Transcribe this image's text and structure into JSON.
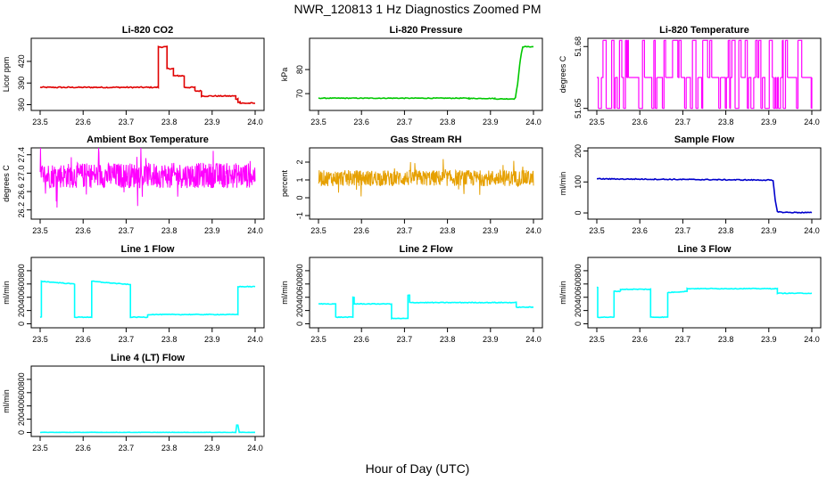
{
  "page": {
    "title": "NWR_120813  1 Hz Diagnostics Zoomed PM",
    "xlabel": "Hour of Day (UTC)"
  },
  "colors": {
    "red": "#e00000",
    "green": "#00c800",
    "magenta": "#ff00ff",
    "orange": "#e6a000",
    "blue": "#0000cc",
    "cyan": "#00ffff"
  },
  "chart_data": [
    {
      "type": "line",
      "title": "Li-820 CO2",
      "ylabel": "Licor ppm",
      "xlim": [
        23.5,
        24.0
      ],
      "ylim": [
        352,
        452
      ],
      "xticks": [
        "23.5",
        "23.6",
        "23.7",
        "23.8",
        "23.9",
        "24.0"
      ],
      "yticks": [
        {
          "v": 360,
          "label": "360"
        },
        {
          "v": 390,
          "label": "390"
        },
        {
          "v": 420,
          "label": "420"
        }
      ],
      "color": "red",
      "noise": 0.8,
      "series": [
        {
          "x": [
            23.5,
            23.775,
            23.775,
            23.795,
            23.795,
            23.81,
            23.81,
            23.82,
            23.82,
            23.835,
            23.835,
            23.86,
            23.86,
            23.875,
            23.875,
            23.955,
            23.955,
            23.96,
            23.96,
            23.965,
            23.965,
            24.0
          ],
          "y": [
            384,
            384,
            440,
            440,
            410,
            410,
            400,
            400,
            400,
            400,
            384,
            384,
            379,
            379,
            372,
            372,
            368,
            368,
            364,
            364,
            362,
            362
          ]
        }
      ]
    },
    {
      "type": "line",
      "title": "Li-820 Pressure",
      "ylabel": "kPa",
      "xlim": [
        23.5,
        24.0
      ],
      "ylim": [
        63,
        93
      ],
      "xticks": [
        "23.5",
        "23.6",
        "23.7",
        "23.8",
        "23.9",
        "24.0"
      ],
      "yticks": [
        {
          "v": 70,
          "label": "70"
        },
        {
          "v": 80,
          "label": "80"
        }
      ],
      "color": "green",
      "noise": 0.15,
      "series": [
        {
          "x": [
            23.5,
            23.85,
            23.85,
            23.91,
            23.91,
            23.955,
            23.958,
            23.963,
            23.968,
            23.972,
            23.975,
            24.0
          ],
          "y": [
            68.1,
            68.1,
            68.0,
            68.0,
            67.8,
            67.8,
            68.5,
            74,
            82,
            87,
            89.5,
            89.5
          ]
        }
      ]
    },
    {
      "type": "line",
      "title": "Li-820 Temperature",
      "ylabel": "degrees C",
      "xlim": [
        23.5,
        24.0
      ],
      "ylim": [
        51.649,
        51.684
      ],
      "xticks": [
        "23.5",
        "23.6",
        "23.7",
        "23.8",
        "23.9",
        "24.0"
      ],
      "yticks": [
        {
          "v": 51.65,
          "label": "51.65"
        },
        {
          "v": 51.68,
          "label": "51.68"
        }
      ],
      "color": "magenta",
      "mode": "flicker",
      "levels": [
        51.65,
        51.665,
        51.683
      ]
    },
    {
      "type": "line",
      "title": "Ambient Box Temperature",
      "ylabel": "degrees C",
      "xlim": [
        23.5,
        24.0
      ],
      "ylim": [
        26.0,
        27.55
      ],
      "xticks": [
        "23.5",
        "23.6",
        "23.7",
        "23.8",
        "23.9",
        "24.0"
      ],
      "yticks": [
        {
          "v": 26.2,
          "label": "26.2"
        },
        {
          "v": 26.6,
          "label": "26.6"
        },
        {
          "v": 27.0,
          "label": "27.0"
        },
        {
          "v": 27.4,
          "label": "27.4"
        }
      ],
      "color": "magenta",
      "mode": "noisy",
      "mean": 26.95,
      "spread": 0.55
    },
    {
      "type": "line",
      "title": "Gas Stream RH",
      "ylabel": "percent",
      "xlim": [
        23.5,
        24.0
      ],
      "ylim": [
        -1.2,
        2.8
      ],
      "xticks": [
        "23.5",
        "23.6",
        "23.7",
        "23.8",
        "23.9",
        "24.0"
      ],
      "yticks": [
        {
          "v": -1,
          "label": "-1"
        },
        {
          "v": 0,
          "label": "0"
        },
        {
          "v": 1,
          "label": "1"
        },
        {
          "v": 2,
          "label": "2"
        }
      ],
      "color": "orange",
      "mode": "noisy",
      "mean": 1.1,
      "spread": 0.9
    },
    {
      "type": "line",
      "title": "Sample Flow",
      "ylabel": "ml/min",
      "xlim": [
        23.5,
        24.0
      ],
      "ylim": [
        -20,
        210
      ],
      "xticks": [
        "23.5",
        "23.6",
        "23.7",
        "23.8",
        "23.9",
        "24.0"
      ],
      "yticks": [
        {
          "v": 0,
          "label": "0"
        },
        {
          "v": 100,
          "label": "100"
        },
        {
          "v": 200,
          "label": "200"
        }
      ],
      "color": "blue",
      "noise": 1.5,
      "series": [
        {
          "x": [
            23.5,
            23.9,
            23.91,
            23.915,
            23.92,
            23.93,
            24.0
          ],
          "y": [
            110,
            106,
            104,
            40,
            5,
            2,
            1
          ]
        }
      ]
    },
    {
      "type": "line",
      "title": "Line 1 Flow",
      "ylabel": "ml/min",
      "xlim": [
        23.5,
        24.0
      ],
      "ylim": [
        -60,
        1000
      ],
      "xticks": [
        "23.5",
        "23.6",
        "23.7",
        "23.8",
        "23.9",
        "24.0"
      ],
      "yticks": [
        {
          "v": 0,
          "label": "0"
        },
        {
          "v": 200,
          "label": "200"
        },
        {
          "v": 400,
          "label": "400"
        },
        {
          "v": 600,
          "label": "600"
        },
        {
          "v": 800,
          "label": "800"
        }
      ],
      "color": "cyan",
      "noise": 5,
      "series": [
        {
          "x": [
            23.5,
            23.503,
            23.503,
            23.58,
            23.58,
            23.62,
            23.62,
            23.71,
            23.71,
            23.75,
            23.75,
            23.96,
            23.96,
            24.0
          ],
          "y": [
            100,
            100,
            640,
            600,
            100,
            100,
            640,
            590,
            100,
            100,
            140,
            140,
            560,
            560
          ]
        }
      ]
    },
    {
      "type": "line",
      "title": "Line 2 Flow",
      "ylabel": "ml/min",
      "xlim": [
        23.5,
        24.0
      ],
      "ylim": [
        -60,
        1000
      ],
      "xticks": [
        "23.5",
        "23.6",
        "23.7",
        "23.8",
        "23.9",
        "24.0"
      ],
      "yticks": [
        {
          "v": 0,
          "label": "0"
        },
        {
          "v": 200,
          "label": "200"
        },
        {
          "v": 400,
          "label": "400"
        },
        {
          "v": 600,
          "label": "600"
        },
        {
          "v": 800,
          "label": "800"
        }
      ],
      "color": "cyan",
      "noise": 5,
      "series": [
        {
          "x": [
            23.5,
            23.54,
            23.54,
            23.58,
            23.58,
            23.583,
            23.583,
            23.67,
            23.67,
            23.708,
            23.708,
            23.712,
            23.712,
            23.96,
            23.96,
            24.0
          ],
          "y": [
            300,
            300,
            100,
            100,
            400,
            400,
            300,
            300,
            80,
            80,
            430,
            430,
            320,
            320,
            250,
            250
          ]
        }
      ]
    },
    {
      "type": "line",
      "title": "Line 3 Flow",
      "ylabel": "ml/min",
      "xlim": [
        23.5,
        24.0
      ],
      "ylim": [
        -60,
        1000
      ],
      "xticks": [
        "23.5",
        "23.6",
        "23.7",
        "23.8",
        "23.9",
        "24.0"
      ],
      "yticks": [
        {
          "v": 0,
          "label": "0"
        },
        {
          "v": 200,
          "label": "200"
        },
        {
          "v": 400,
          "label": "400"
        },
        {
          "v": 600,
          "label": "600"
        },
        {
          "v": 800,
          "label": "800"
        }
      ],
      "color": "cyan",
      "noise": 5,
      "series": [
        {
          "x": [
            23.5,
            23.502,
            23.502,
            23.54,
            23.54,
            23.555,
            23.555,
            23.625,
            23.625,
            23.665,
            23.665,
            23.71,
            23.71,
            23.92,
            23.92,
            24.0
          ],
          "y": [
            550,
            550,
            100,
            100,
            490,
            490,
            520,
            520,
            100,
            100,
            470,
            490,
            530,
            530,
            460,
            460
          ]
        }
      ]
    },
    {
      "type": "line",
      "title": "Line 4 (LT) Flow",
      "ylabel": "ml/min",
      "xlim": [
        23.5,
        24.0
      ],
      "ylim": [
        -60,
        1000
      ],
      "xticks": [
        "23.5",
        "23.6",
        "23.7",
        "23.8",
        "23.9",
        "24.0"
      ],
      "yticks": [
        {
          "v": 0,
          "label": "0"
        },
        {
          "v": 200,
          "label": "200"
        },
        {
          "v": 400,
          "label": "400"
        },
        {
          "v": 600,
          "label": "600"
        },
        {
          "v": 800,
          "label": "800"
        }
      ],
      "color": "cyan",
      "noise": 2,
      "series": [
        {
          "x": [
            23.5,
            23.955,
            23.957,
            23.96,
            23.963,
            24.0
          ],
          "y": [
            2,
            2,
            110,
            110,
            2,
            2
          ]
        }
      ]
    }
  ]
}
